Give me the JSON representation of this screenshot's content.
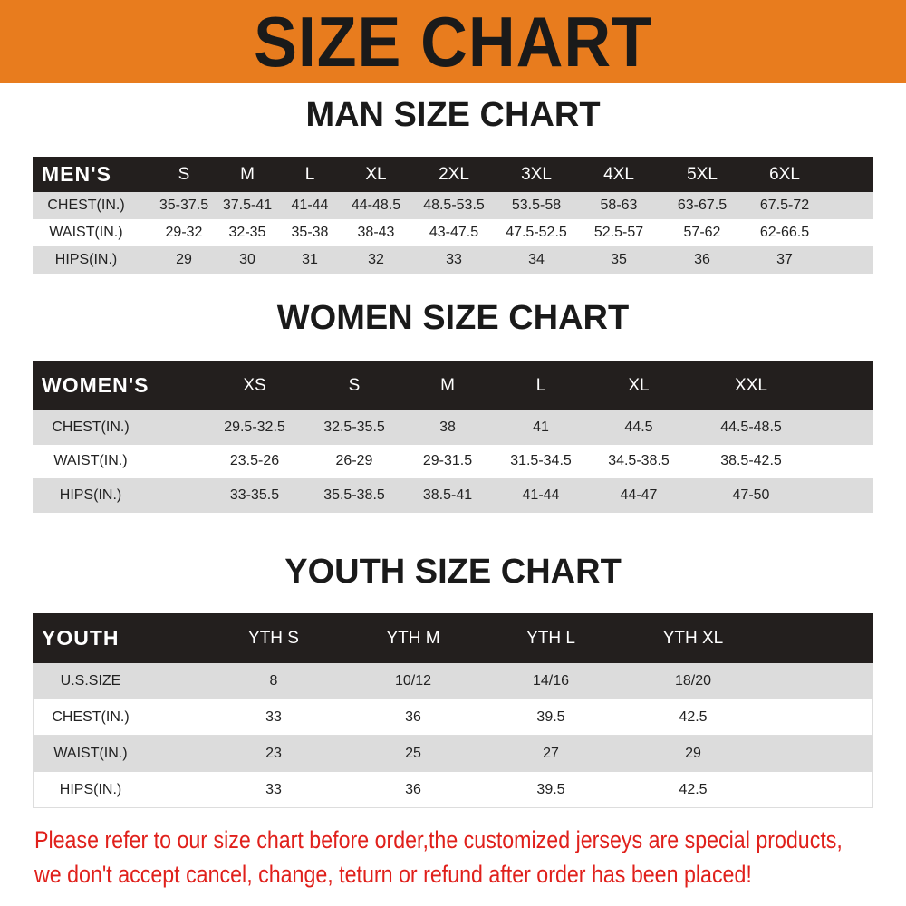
{
  "title": "SIZE CHART",
  "colors": {
    "banner": "#e87c1e",
    "header": "#231f1e",
    "note": "#e0201b"
  },
  "men": {
    "title": "MAN SIZE CHART",
    "header": [
      "MEN'S",
      "S",
      "M",
      "L",
      "XL",
      "2XL",
      "3XL",
      "4XL",
      "5XL",
      "6XL"
    ],
    "rows": [
      [
        "CHEST(IN.)",
        "35-37.5",
        "37.5-41",
        "41-44",
        "44-48.5",
        "48.5-53.5",
        "53.5-58",
        "58-63",
        "63-67.5",
        "67.5-72"
      ],
      [
        "WAIST(IN.)",
        "29-32",
        "32-35",
        "35-38",
        "38-43",
        "43-47.5",
        "47.5-52.5",
        "52.5-57",
        "57-62",
        "62-66.5"
      ],
      [
        "HIPS(IN.)",
        "29",
        "30",
        "31",
        "32",
        "33",
        "34",
        "35",
        "36",
        "37"
      ]
    ]
  },
  "women": {
    "title": "WOMEN SIZE CHART",
    "header": [
      "WOMEN'S",
      "XS",
      "S",
      "M",
      "L",
      "XL",
      "XXL"
    ],
    "rows": [
      [
        "CHEST(IN.)",
        "29.5-32.5",
        "32.5-35.5",
        "38",
        "41",
        "44.5",
        "44.5-48.5"
      ],
      [
        "WAIST(IN.)",
        "23.5-26",
        "26-29",
        "29-31.5",
        "31.5-34.5",
        "34.5-38.5",
        "38.5-42.5"
      ],
      [
        "HIPS(IN.)",
        "33-35.5",
        "35.5-38.5",
        "38.5-41",
        "41-44",
        "44-47",
        "47-50"
      ]
    ]
  },
  "youth": {
    "title": "YOUTH SIZE CHART",
    "header": [
      "YOUTH",
      "YTH S",
      "YTH M",
      "YTH L",
      "YTH XL"
    ],
    "rows": [
      [
        "U.S.SIZE",
        "8",
        "10/12",
        "14/16",
        "18/20"
      ],
      [
        "CHEST(IN.)",
        "33",
        "36",
        "39.5",
        "42.5"
      ],
      [
        "WAIST(IN.)",
        "23",
        "25",
        "27",
        "29"
      ],
      [
        "HIPS(IN.)",
        "33",
        "36",
        "39.5",
        "42.5"
      ]
    ]
  },
  "note": [
    "Please refer to our size chart before order,the customized jerseys are special products,",
    "we don't accept cancel, change, teturn or refund after order has been placed!"
  ]
}
